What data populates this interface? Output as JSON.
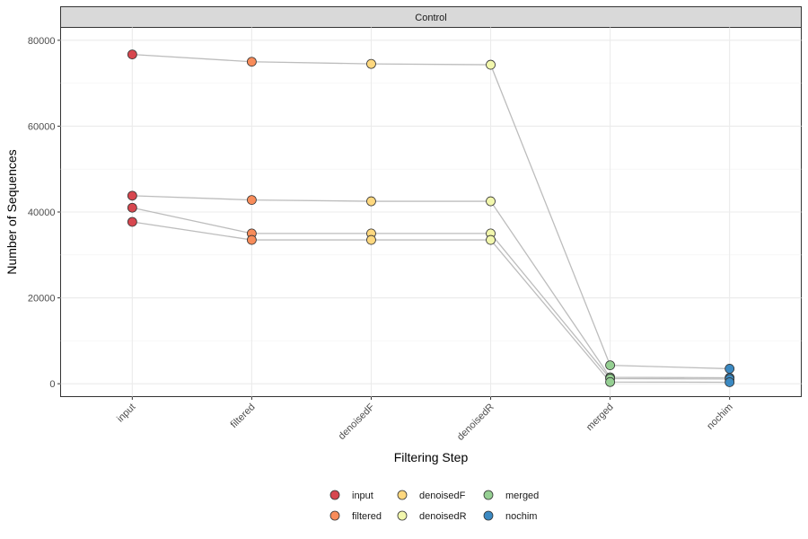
{
  "chart_data": {
    "type": "line",
    "facet": "Control",
    "xlabel": "Filtering Step",
    "ylabel": "Number of Sequences",
    "categories": [
      "input",
      "filtered",
      "denoisedF",
      "denoisedR",
      "merged",
      "nochim"
    ],
    "ylim": [
      -3000,
      83000
    ],
    "yticks": [
      0,
      20000,
      40000,
      60000,
      80000
    ],
    "ytick_labels": [
      "0",
      "20000",
      "40000",
      "60000",
      "80000"
    ],
    "grid": true,
    "legend_position": "bottom",
    "step_colors": {
      "input": "#d7474f",
      "filtered": "#f88c5a",
      "denoisedF": "#fed87f",
      "denoisedR": "#f2f7ad",
      "merged": "#95cf92",
      "nochim": "#3b89c2"
    },
    "line_color": "#bdbdbd",
    "samples": [
      {
        "values": [
          76700,
          75000,
          74500,
          74300,
          4300,
          3500
        ]
      },
      {
        "values": [
          43800,
          42800,
          42500,
          42500,
          1500,
          1400
        ]
      },
      {
        "values": [
          41000,
          35000,
          35000,
          35000,
          1200,
          1100
        ]
      },
      {
        "values": [
          37700,
          33500,
          33500,
          33500,
          400,
          350
        ]
      }
    ]
  },
  "legend": {
    "items": [
      {
        "label": "input",
        "step": "input"
      },
      {
        "label": "filtered",
        "step": "filtered"
      },
      {
        "label": "denoisedF",
        "step": "denoisedF"
      },
      {
        "label": "denoisedR",
        "step": "denoisedR"
      },
      {
        "label": "merged",
        "step": "merged"
      },
      {
        "label": "nochim",
        "step": "nochim"
      }
    ]
  }
}
